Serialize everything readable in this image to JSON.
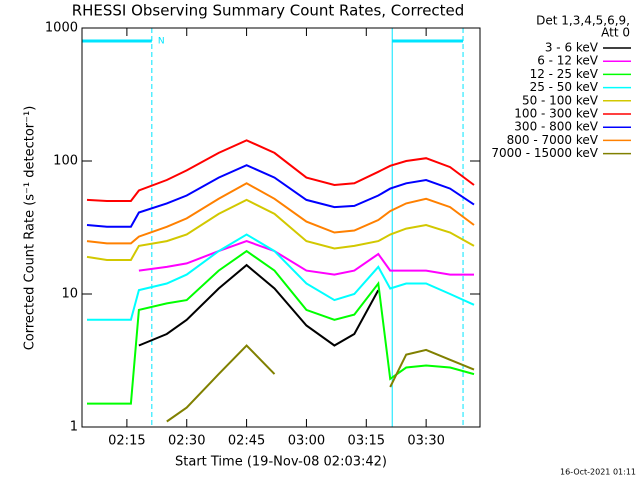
{
  "chart_data": {
    "type": "line",
    "title": "RHESSI Observing Summary Count Rates, Corrected",
    "xlabel": "Start Time (19-Nov-08 02:03:42)",
    "ylabel": "Corrected Count Rate (s⁻¹ detector⁻¹)",
    "legend_header": [
      "Det 1,3,4,5,6,9,",
      "Att 0"
    ],
    "timestamp": "16-Oct-2021 01:11",
    "log_y": true,
    "xlim": [
      3.75,
      103.5
    ],
    "xticks": [
      {
        "value": 15,
        "label": "02:15"
      },
      {
        "value": 30,
        "label": "02:30"
      },
      {
        "value": 45,
        "label": "02:45"
      },
      {
        "value": 60,
        "label": "03:00"
      },
      {
        "value": 75,
        "label": "03:15"
      },
      {
        "value": 90,
        "label": "03:30"
      }
    ],
    "ylim": [
      1,
      1000
    ],
    "yticks": [
      1,
      10,
      100,
      1000
    ],
    "night": [
      {
        "start": 3.75,
        "end": 21.25,
        "label": "N"
      },
      {
        "start": 81.5,
        "end": 99.25
      }
    ],
    "night_color": "#00e5ff",
    "x": [
      5,
      10,
      16,
      18,
      25,
      30,
      38,
      45,
      52,
      60,
      67,
      72,
      78,
      81,
      85,
      90,
      96,
      102
    ],
    "series": [
      {
        "name": "3 - 6 keV",
        "color": "#000000",
        "values": [
          null,
          null,
          null,
          4.1,
          5,
          6.4,
          11,
          16.5,
          11,
          5.8,
          4.1,
          5,
          10.7,
          null,
          null,
          null,
          null,
          null
        ]
      },
      {
        "name": "6 - 12 keV",
        "color": "#ff00ff",
        "values": [
          null,
          null,
          null,
          15,
          16,
          17,
          21,
          25,
          21,
          15,
          14,
          15,
          20,
          15,
          15,
          15,
          14,
          14
        ]
      },
      {
        "name": "12 - 25 keV",
        "color": "#00ff00",
        "values": [
          1.5,
          1.5,
          1.5,
          7.6,
          8.5,
          9,
          15,
          21,
          15,
          7.6,
          6.4,
          7,
          12,
          2.3,
          2.8,
          2.9,
          2.8,
          2.5
        ]
      },
      {
        "name": "25 - 50 keV",
        "color": "#00ffff",
        "values": [
          6.4,
          6.4,
          6.4,
          10.7,
          12,
          14,
          21,
          28,
          21,
          12,
          9,
          10,
          16,
          11,
          12,
          12,
          10,
          8.3
        ]
      },
      {
        "name": "50 - 100 keV",
        "color": "#d2c800",
        "values": [
          19,
          18,
          18,
          23,
          25,
          28,
          40,
          51,
          40,
          25,
          22,
          23,
          25,
          28,
          31,
          33,
          29,
          23
        ]
      },
      {
        "name": "100 - 300 keV",
        "color": "#ff0000",
        "values": [
          51,
          50,
          50,
          60,
          72,
          85,
          115,
          143,
          115,
          75,
          66,
          68,
          83,
          92,
          100,
          105,
          90,
          66
        ]
      },
      {
        "name": "300 - 800 keV",
        "color": "#0000ff",
        "values": [
          33,
          32,
          32,
          41,
          48,
          55,
          75,
          93,
          75,
          51,
          45,
          46,
          55,
          62,
          68,
          72,
          62,
          47
        ]
      },
      {
        "name": "800 - 7000 keV",
        "color": "#ff8000",
        "values": [
          25,
          24,
          24,
          27,
          32,
          37,
          52,
          68,
          52,
          35,
          29,
          30,
          36,
          42,
          48,
          52,
          45,
          33
        ]
      },
      {
        "name": "7000 - 15000 keV",
        "color": "#808000",
        "values": [
          null,
          null,
          null,
          null,
          1.1,
          1.4,
          2.5,
          4.1,
          2.5,
          null,
          null,
          null,
          null,
          2,
          3.5,
          3.8,
          3.2,
          2.7
        ]
      }
    ]
  }
}
